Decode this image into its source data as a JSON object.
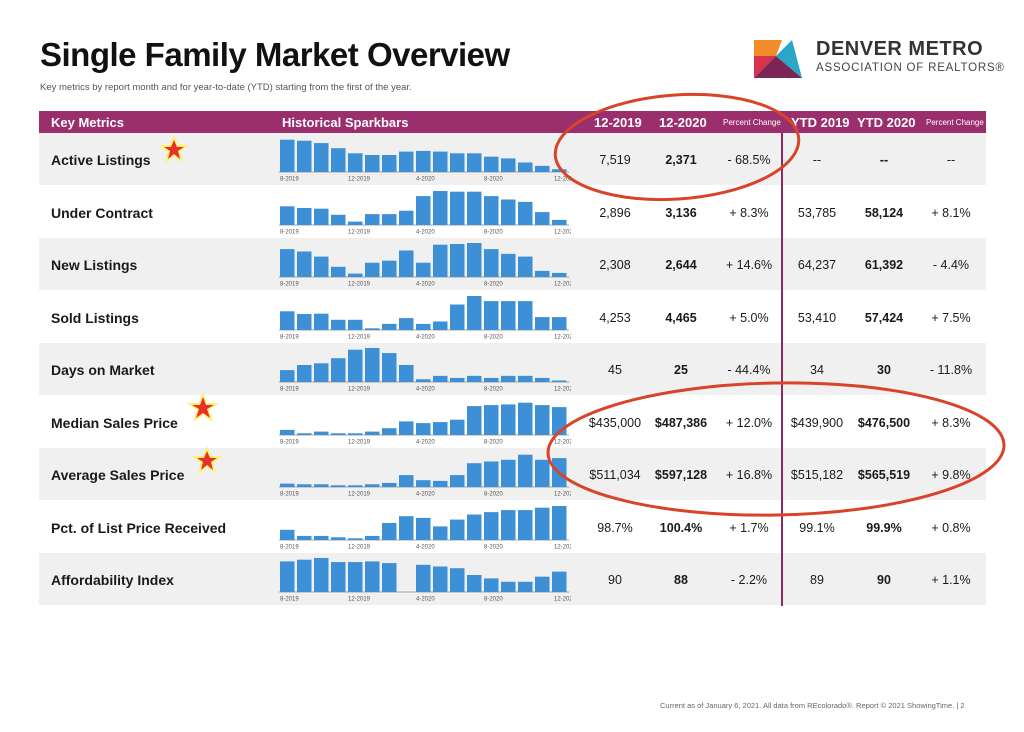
{
  "title": "Single Family Market Overview",
  "subtitle": "Key metrics by report month and for year-to-date (YTD) starting from the first of the year.",
  "logo": {
    "line1": "DENVER METRO",
    "line2": "ASSOCIATION OF REALTORS®"
  },
  "header": {
    "key_metrics": "Key Metrics",
    "sparkbars": "Historical Sparkbars",
    "col_2019": "12-2019",
    "col_2020": "12-2020",
    "pct_change": "Percent Change",
    "ytd_2019": "YTD 2019",
    "ytd_2020": "YTD 2020",
    "ytd_pct_change": "Percent Change"
  },
  "spark_labels": [
    "8-2019",
    "12-2019",
    "4-2020",
    "8-2020",
    "12-2020"
  ],
  "rows": [
    {
      "name": "Active Listings",
      "v2019": "7,519",
      "v2020": "2,371",
      "pct": "- 68.5%",
      "ytd2019": "--",
      "ytd2020": "--",
      "ytdpct": "--",
      "bars": [
        0.95,
        0.92,
        0.85,
        0.7,
        0.55,
        0.5,
        0.5,
        0.6,
        0.62,
        0.6,
        0.55,
        0.55,
        0.45,
        0.4,
        0.28,
        0.18,
        0.08
      ]
    },
    {
      "name": "Under Contract",
      "v2019": "2,896",
      "v2020": "3,136",
      "pct": "+ 8.3%",
      "ytd2019": "53,785",
      "ytd2020": "58,124",
      "ytdpct": "+ 8.1%",
      "bars": [
        0.55,
        0.5,
        0.48,
        0.3,
        0.1,
        0.32,
        0.32,
        0.42,
        0.85,
        1.0,
        0.98,
        0.98,
        0.85,
        0.75,
        0.68,
        0.38,
        0.15
      ]
    },
    {
      "name": "New Listings",
      "v2019": "2,308",
      "v2020": "2,644",
      "pct": "+ 14.6%",
      "ytd2019": "64,237",
      "ytd2020": "61,392",
      "ytdpct": "- 4.4%",
      "bars": [
        0.82,
        0.75,
        0.6,
        0.3,
        0.1,
        0.42,
        0.48,
        0.78,
        0.42,
        0.95,
        0.97,
        1.0,
        0.82,
        0.68,
        0.6,
        0.18,
        0.12
      ]
    },
    {
      "name": "Sold Listings",
      "v2019": "4,253",
      "v2020": "4,465",
      "pct": "+ 5.0%",
      "ytd2019": "53,410",
      "ytd2020": "57,424",
      "ytdpct": "+ 7.5%",
      "bars": [
        0.55,
        0.47,
        0.48,
        0.3,
        0.3,
        0.05,
        0.18,
        0.35,
        0.18,
        0.25,
        0.75,
        1.0,
        0.85,
        0.85,
        0.85,
        0.38,
        0.38
      ]
    },
    {
      "name": "Days on Market",
      "v2019": "45",
      "v2020": "25",
      "pct": "- 44.4%",
      "ytd2019": "34",
      "ytd2020": "30",
      "ytdpct": "- 11.8%",
      "bars": [
        0.35,
        0.5,
        0.55,
        0.7,
        0.95,
        1.0,
        0.85,
        0.5,
        0.08,
        0.18,
        0.12,
        0.18,
        0.12,
        0.18,
        0.18,
        0.12,
        0.03
      ]
    },
    {
      "name": "Median Sales Price",
      "v2019": "$435,000",
      "v2020": "$487,386",
      "pct": "+ 12.0%",
      "ytd2019": "$439,900",
      "ytd2020": "$476,500",
      "ytdpct": "+ 8.3%",
      "bars": [
        0.15,
        0.05,
        0.1,
        0.05,
        0.05,
        0.1,
        0.2,
        0.4,
        0.35,
        0.38,
        0.45,
        0.85,
        0.88,
        0.9,
        0.95,
        0.88,
        0.82
      ]
    },
    {
      "name": "Average Sales Price",
      "v2019": "$511,034",
      "v2020": "$597,128",
      "pct": "+ 16.8%",
      "ytd2019": "$515,182",
      "ytd2020": "$565,519",
      "ytdpct": "+ 9.8%",
      "bars": [
        0.1,
        0.08,
        0.08,
        0.05,
        0.05,
        0.08,
        0.12,
        0.35,
        0.2,
        0.18,
        0.35,
        0.7,
        0.75,
        0.8,
        0.95,
        0.8,
        0.85
      ]
    },
    {
      "name": "Pct. of List Price Received",
      "v2019": "98.7%",
      "v2020": "100.4%",
      "pct": "+ 1.7%",
      "ytd2019": "99.1%",
      "ytd2020": "99.9%",
      "ytdpct": "+ 0.8%",
      "bars": [
        0.3,
        0.12,
        0.12,
        0.08,
        0.05,
        0.12,
        0.5,
        0.7,
        0.65,
        0.4,
        0.6,
        0.75,
        0.82,
        0.88,
        0.88,
        0.95,
        1.0
      ]
    },
    {
      "name": "Affordability Index",
      "v2019": "90",
      "v2020": "88",
      "pct": "- 2.2%",
      "ytd2019": "89",
      "ytd2020": "90",
      "ytdpct": "+ 1.1%",
      "bars": [
        0.9,
        0.95,
        1.0,
        0.88,
        0.88,
        0.9,
        0.85,
        0.0,
        0.8,
        0.75,
        0.7,
        0.5,
        0.4,
        0.3,
        0.3,
        0.45,
        0.6
      ]
    }
  ],
  "footer": "Current as of January 6, 2021. All data from REcolorado®. Report © 2021 ShowingTime.  |  2",
  "colors": {
    "accent": "#9b2e6d",
    "bar": "#3d8fd6",
    "annotation": "#d9432a",
    "star": "#e8302a",
    "star_glow": "#fff36a"
  },
  "annotations": {
    "circled_rows": [
      "Active Listings",
      "Median Sales Price",
      "Average Sales Price"
    ],
    "starred_rows": [
      "Active Listings",
      "Median Sales Price",
      "Average Sales Price"
    ],
    "icon": "star-icon"
  }
}
